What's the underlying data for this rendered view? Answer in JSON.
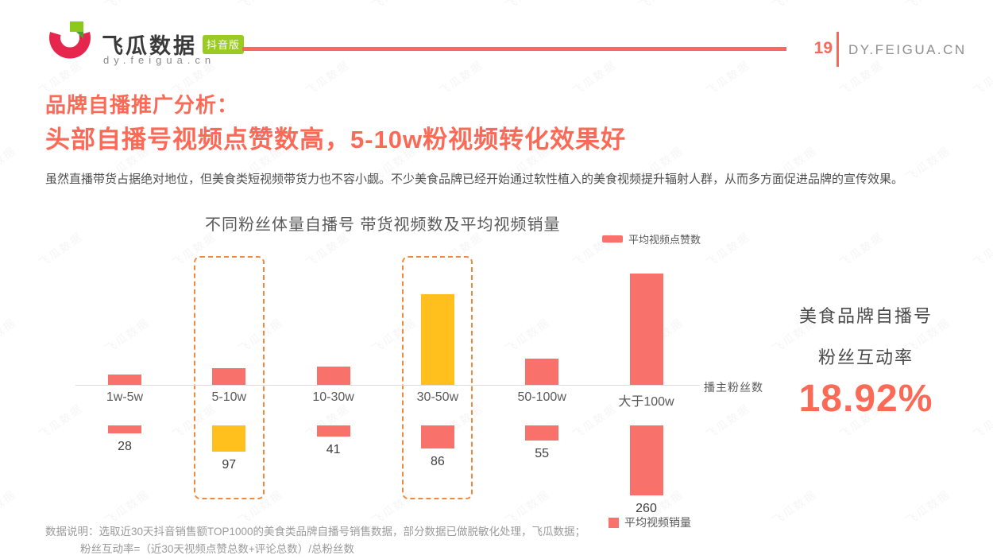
{
  "header": {
    "brand_name": "飞瓜数据",
    "brand_badge": "抖音版",
    "brand_domain": "dy.feigua.cn",
    "page_number": "19",
    "site": "DY.FEIGUA.CN"
  },
  "title": {
    "line1": "品牌自播推广分析：",
    "line2": "头部自播号视频点赞数高，5-10w粉视频转化效果好"
  },
  "intro": "虽然直播带货占据绝对地位，但美食类短视频带货力也不容小觑。不少美食品牌已经开始通过软性植入的美食视频提升辐射人群，从而多方面促进品牌的宣传效果。",
  "chart_data": {
    "type": "bar",
    "title": "不同粉丝体量自播号 带货视频数及平均视频销量",
    "categories": [
      "1w-5w",
      "5-10w",
      "10-30w",
      "30-50w",
      "50-100w",
      "大于100w"
    ],
    "series": [
      {
        "name": "平均视频点赞数",
        "direction": "up",
        "axis_labeled": false,
        "values_est_relative": [
          13,
          21,
          23,
          114,
          33,
          140
        ]
      },
      {
        "name": "平均视频销量",
        "direction": "down",
        "values": [
          28,
          97,
          41,
          86,
          55,
          260
        ]
      }
    ],
    "x_axis_label": "播主粉丝数",
    "legend_position": {
      "likes": "top-right",
      "sales": "bottom-center"
    },
    "grid": false,
    "highlight_boxes": [
      "5-10w",
      "30-50w"
    ],
    "highlight_bars": {
      "5-10w": "sales",
      "30-50w": "likes"
    },
    "colors": {
      "bar": "#f8716a",
      "highlight": "#ffc01e",
      "dashed_box": "#ed8a3f",
      "accent": "#fb6a57"
    }
  },
  "stat": {
    "line1": "美食品牌自播号",
    "line2": "粉丝互动率",
    "value": "18.92%"
  },
  "footnote": {
    "line1": "数据说明：选取近30天抖音销售额TOP1000的美食类品牌自播号销售数据，部分数据已做脱敏化处理，飞瓜数据；",
    "line2": "粉丝互动率=（近30天视频点赞总数+评论总数）/总粉丝数"
  },
  "watermark": "飞瓜数据"
}
